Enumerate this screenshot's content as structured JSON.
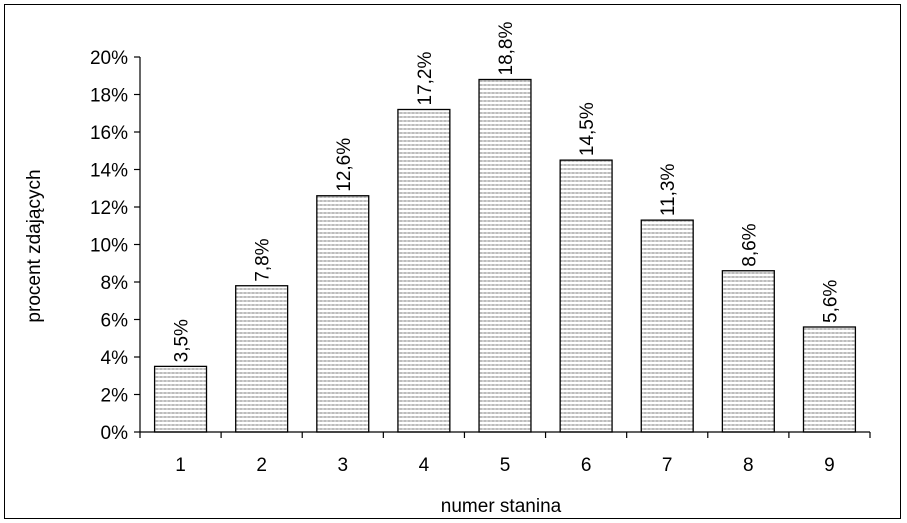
{
  "chart_data": {
    "type": "bar",
    "categories": [
      "1",
      "2",
      "3",
      "4",
      "5",
      "6",
      "7",
      "8",
      "9"
    ],
    "values": [
      3.5,
      7.8,
      12.6,
      17.2,
      18.8,
      14.5,
      11.3,
      8.6,
      5.6
    ],
    "data_labels": [
      "3,5%",
      "7,8%",
      "12,6%",
      "17,2%",
      "18,8%",
      "14,5%",
      "11,3%",
      "8,6%",
      "5,6%"
    ],
    "xlabel": "numer stanina",
    "ylabel": "procent zdających",
    "ylim": [
      0,
      20
    ],
    "yticks": [
      0,
      2,
      4,
      6,
      8,
      10,
      12,
      14,
      16,
      18,
      20
    ],
    "ytick_labels": [
      "0%",
      "2%",
      "4%",
      "6%",
      "8%",
      "10%",
      "12%",
      "14%",
      "16%",
      "18%",
      "20%"
    ],
    "grid": false,
    "legend": "none",
    "colors": {
      "bar_fill": "#e4e4e4",
      "bar_edge": "#000000",
      "axis": "#000000"
    }
  }
}
